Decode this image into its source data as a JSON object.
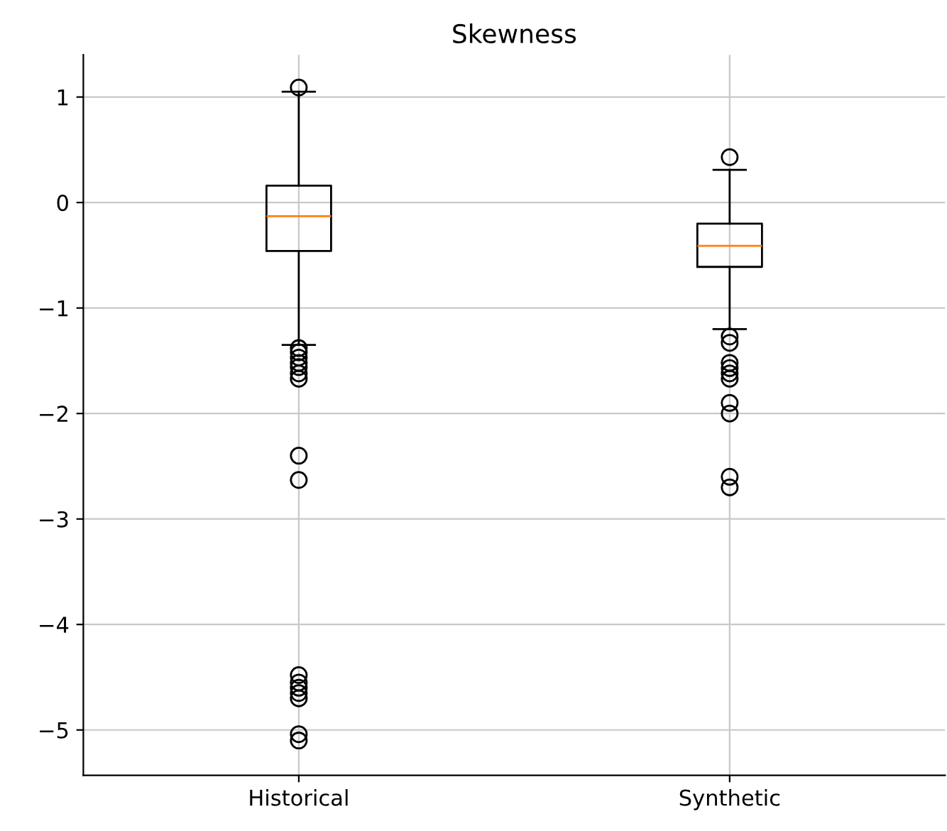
{
  "chart_data": {
    "type": "box",
    "title": "Skewness",
    "categories": [
      "Historical",
      "Synthetic"
    ],
    "boxes": [
      {
        "low": -1.35,
        "q1": -0.46,
        "median": -0.13,
        "q3": 0.16,
        "high": 1.05,
        "outliers": [
          1.09,
          -1.38,
          -1.42,
          -1.47,
          -1.52,
          -1.56,
          -1.62,
          -1.67,
          -2.4,
          -2.63,
          -4.48,
          -4.55,
          -4.6,
          -4.65,
          -4.7,
          -5.04,
          -5.1
        ]
      },
      {
        "low": -1.2,
        "q1": -0.61,
        "median": -0.41,
        "q3": -0.2,
        "high": 0.31,
        "outliers": [
          0.43,
          -1.27,
          -1.33,
          -1.52,
          -1.57,
          -1.62,
          -1.67,
          -1.9,
          -2.0,
          -2.6,
          -2.7
        ]
      }
    ],
    "ylim": [
      -5.43,
      1.4
    ],
    "yticks": [
      -5,
      -4,
      -3,
      -2,
      -1,
      0,
      1
    ],
    "grid": true
  }
}
